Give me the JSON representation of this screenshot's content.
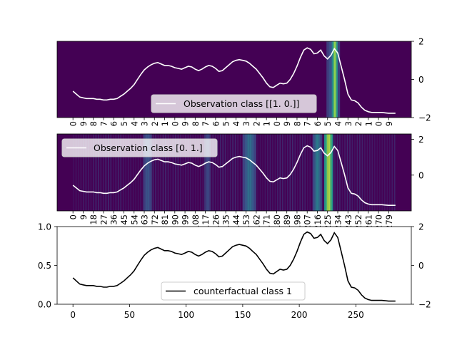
{
  "colors": {
    "heatmap_base": "#440154",
    "heatmap_mid": "#3b528b",
    "heatmap_teal": "#21918c",
    "heatmap_green": "#5ec962",
    "heatmap_yellow": "#fde725",
    "observation_line": "#ffffff",
    "counterfactual_line": "#000000"
  },
  "chart_data": [
    {
      "type": "heatmap",
      "panel": "top",
      "colormap": "viridis",
      "legend": {
        "label": "Observation class [[1. 0.]]",
        "placement": "lower-center"
      },
      "y_right_ticks": [
        "2",
        "0",
        "−2"
      ],
      "y_right_range": [
        -2,
        2
      ],
      "x_tick_labels": [
        "0",
        "9",
        "8",
        "7",
        "6",
        "5",
        "4",
        "3",
        "2",
        "1",
        "0",
        "9",
        "8",
        "7",
        "6",
        "5",
        "4",
        "3",
        "2",
        "1",
        "0",
        "9",
        "8",
        "7",
        "6",
        "5",
        "4",
        "3",
        "2",
        "1",
        "0",
        "9"
      ],
      "importance_bands": [
        {
          "from": 224,
          "to": 236,
          "level": 0.4
        },
        {
          "from": 229,
          "to": 234,
          "level": 0.95
        }
      ]
    },
    {
      "type": "heatmap",
      "panel": "middle",
      "colormap": "viridis",
      "legend": {
        "label": "Observation class [0. 1.]",
        "placement": "upper-left"
      },
      "y_right_ticks": [
        "2",
        "0"
      ],
      "y_right_range": [
        -2,
        2.3
      ],
      "x_tick_labels": [
        "0",
        "9",
        "18",
        "27",
        "36",
        "45",
        "54",
        "63",
        "72",
        "81",
        "90",
        "99",
        "108",
        "117",
        "126",
        "135",
        "144",
        "153",
        "162",
        "171",
        "180",
        "189",
        "198",
        "207",
        "216",
        "225",
        "234",
        "243",
        "252",
        "261",
        "270",
        "279"
      ],
      "importance_bands": [
        {
          "from": 62,
          "to": 70,
          "level": 0.35
        },
        {
          "from": 116,
          "to": 122,
          "level": 0.3
        },
        {
          "from": 150,
          "to": 162,
          "level": 0.45
        },
        {
          "from": 212,
          "to": 220,
          "level": 0.5
        },
        {
          "from": 222,
          "to": 230,
          "level": 0.98
        }
      ]
    },
    {
      "type": "line",
      "panel": "bottom",
      "legend": {
        "label": "counterfactual class 1",
        "placement": "lower-center"
      },
      "x_ticks": [
        "0",
        "50",
        "100",
        "150",
        "200",
        "250"
      ],
      "xlim": [
        -14,
        299
      ],
      "y_left_ticks": [
        "0.0",
        "0.5",
        "1.0"
      ],
      "ylim": [
        0,
        1
      ],
      "y_right_ticks": [
        "2",
        "0",
        "−2"
      ],
      "y_right_range": [
        -2,
        2
      ]
    },
    {
      "type": "line",
      "name": "shared series",
      "x": [
        0,
        3,
        6,
        9,
        12,
        15,
        18,
        21,
        24,
        27,
        30,
        33,
        36,
        39,
        42,
        45,
        48,
        51,
        54,
        57,
        60,
        63,
        66,
        69,
        72,
        75,
        78,
        81,
        84,
        87,
        90,
        93,
        96,
        99,
        102,
        105,
        108,
        111,
        114,
        117,
        120,
        123,
        126,
        129,
        132,
        135,
        138,
        141,
        144,
        147,
        150,
        153,
        156,
        159,
        162,
        165,
        168,
        171,
        174,
        177,
        180,
        183,
        186,
        189,
        192,
        195,
        198,
        201,
        204,
        207,
        210,
        213,
        216,
        219,
        222,
        225,
        228,
        231,
        234,
        237,
        240,
        243,
        246,
        249,
        252,
        255,
        258,
        261,
        264,
        267,
        270,
        273,
        276,
        279,
        282,
        285
      ],
      "y": [
        0.34,
        0.3,
        0.26,
        0.25,
        0.24,
        0.24,
        0.24,
        0.23,
        0.23,
        0.22,
        0.22,
        0.23,
        0.23,
        0.24,
        0.27,
        0.3,
        0.34,
        0.38,
        0.43,
        0.5,
        0.57,
        0.63,
        0.67,
        0.7,
        0.72,
        0.73,
        0.71,
        0.69,
        0.69,
        0.68,
        0.66,
        0.65,
        0.64,
        0.66,
        0.68,
        0.67,
        0.64,
        0.62,
        0.64,
        0.67,
        0.69,
        0.68,
        0.65,
        0.61,
        0.62,
        0.66,
        0.7,
        0.74,
        0.76,
        0.77,
        0.76,
        0.75,
        0.72,
        0.68,
        0.64,
        0.58,
        0.52,
        0.45,
        0.4,
        0.39,
        0.42,
        0.45,
        0.44,
        0.45,
        0.5,
        0.58,
        0.68,
        0.8,
        0.9,
        0.93,
        0.91,
        0.85,
        0.86,
        0.9,
        0.82,
        0.78,
        0.83,
        0.92,
        0.86,
        0.68,
        0.5,
        0.3,
        0.22,
        0.21,
        0.18,
        0.12,
        0.08,
        0.06,
        0.05,
        0.05,
        0.05,
        0.05,
        0.045,
        0.04,
        0.04,
        0.04
      ]
    }
  ]
}
